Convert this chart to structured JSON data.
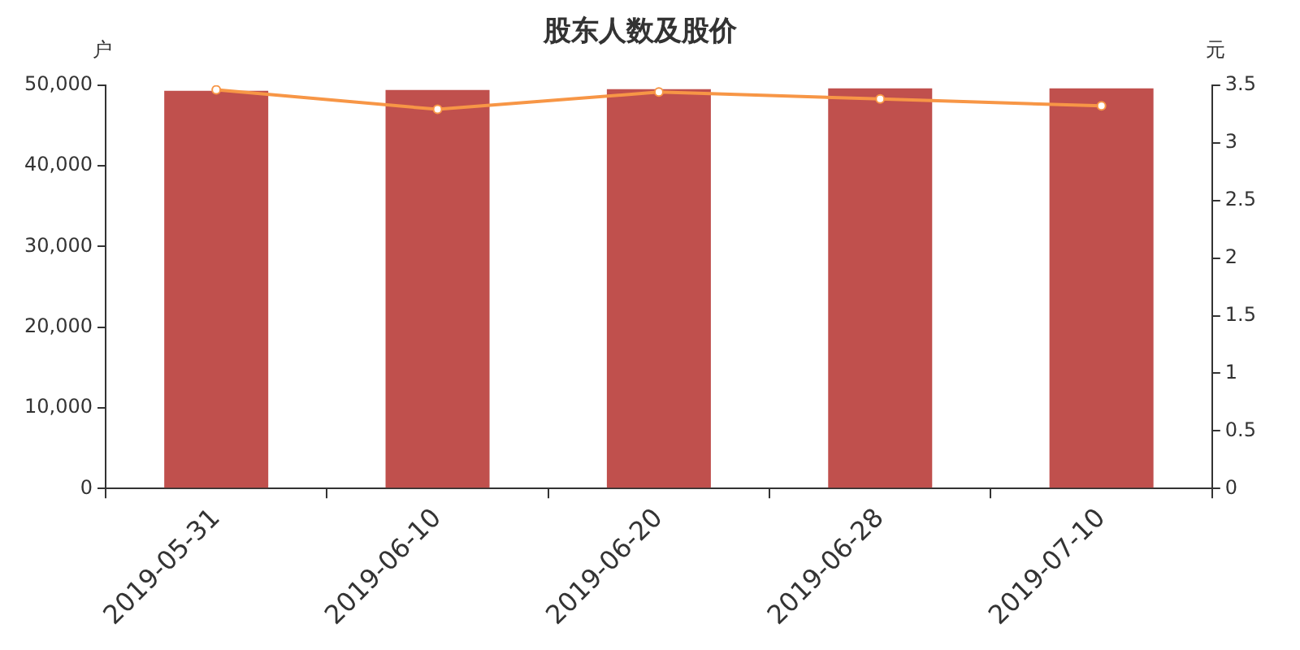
{
  "chart_data": {
    "type": "bar",
    "title": "股东人数及股价",
    "ylabel": "户",
    "y2label": "元",
    "categories": [
      "2019-05-31",
      "2019-06-10",
      "2019-06-20",
      "2019-06-28",
      "2019-07-10"
    ],
    "series": [
      {
        "color": "#c0504d",
        "values": [
          49300,
          49400,
          49500,
          49600,
          49600
        ]
      },
      {
        "type": "line",
        "axis": "y2",
        "color": "#f79646",
        "marker": "circle",
        "values": [
          3.46,
          3.29,
          3.44,
          3.38,
          3.32
        ]
      }
    ],
    "ylim": [
      0,
      50000
    ],
    "yticks": [
      0,
      {
        "value": 10000,
        "label": "10,000"
      },
      {
        "value": 20000,
        "label": "20,000"
      },
      {
        "value": 30000,
        "label": "30,000"
      },
      {
        "value": 40000,
        "label": "40,000"
      },
      {
        "value": 50000,
        "label": "50,000"
      }
    ],
    "y2lim": [
      0,
      3.5
    ],
    "y2ticks": [
      0,
      0.5,
      1,
      1.5,
      2,
      2.5,
      3,
      3.5
    ],
    "grid": false,
    "legend": false
  }
}
